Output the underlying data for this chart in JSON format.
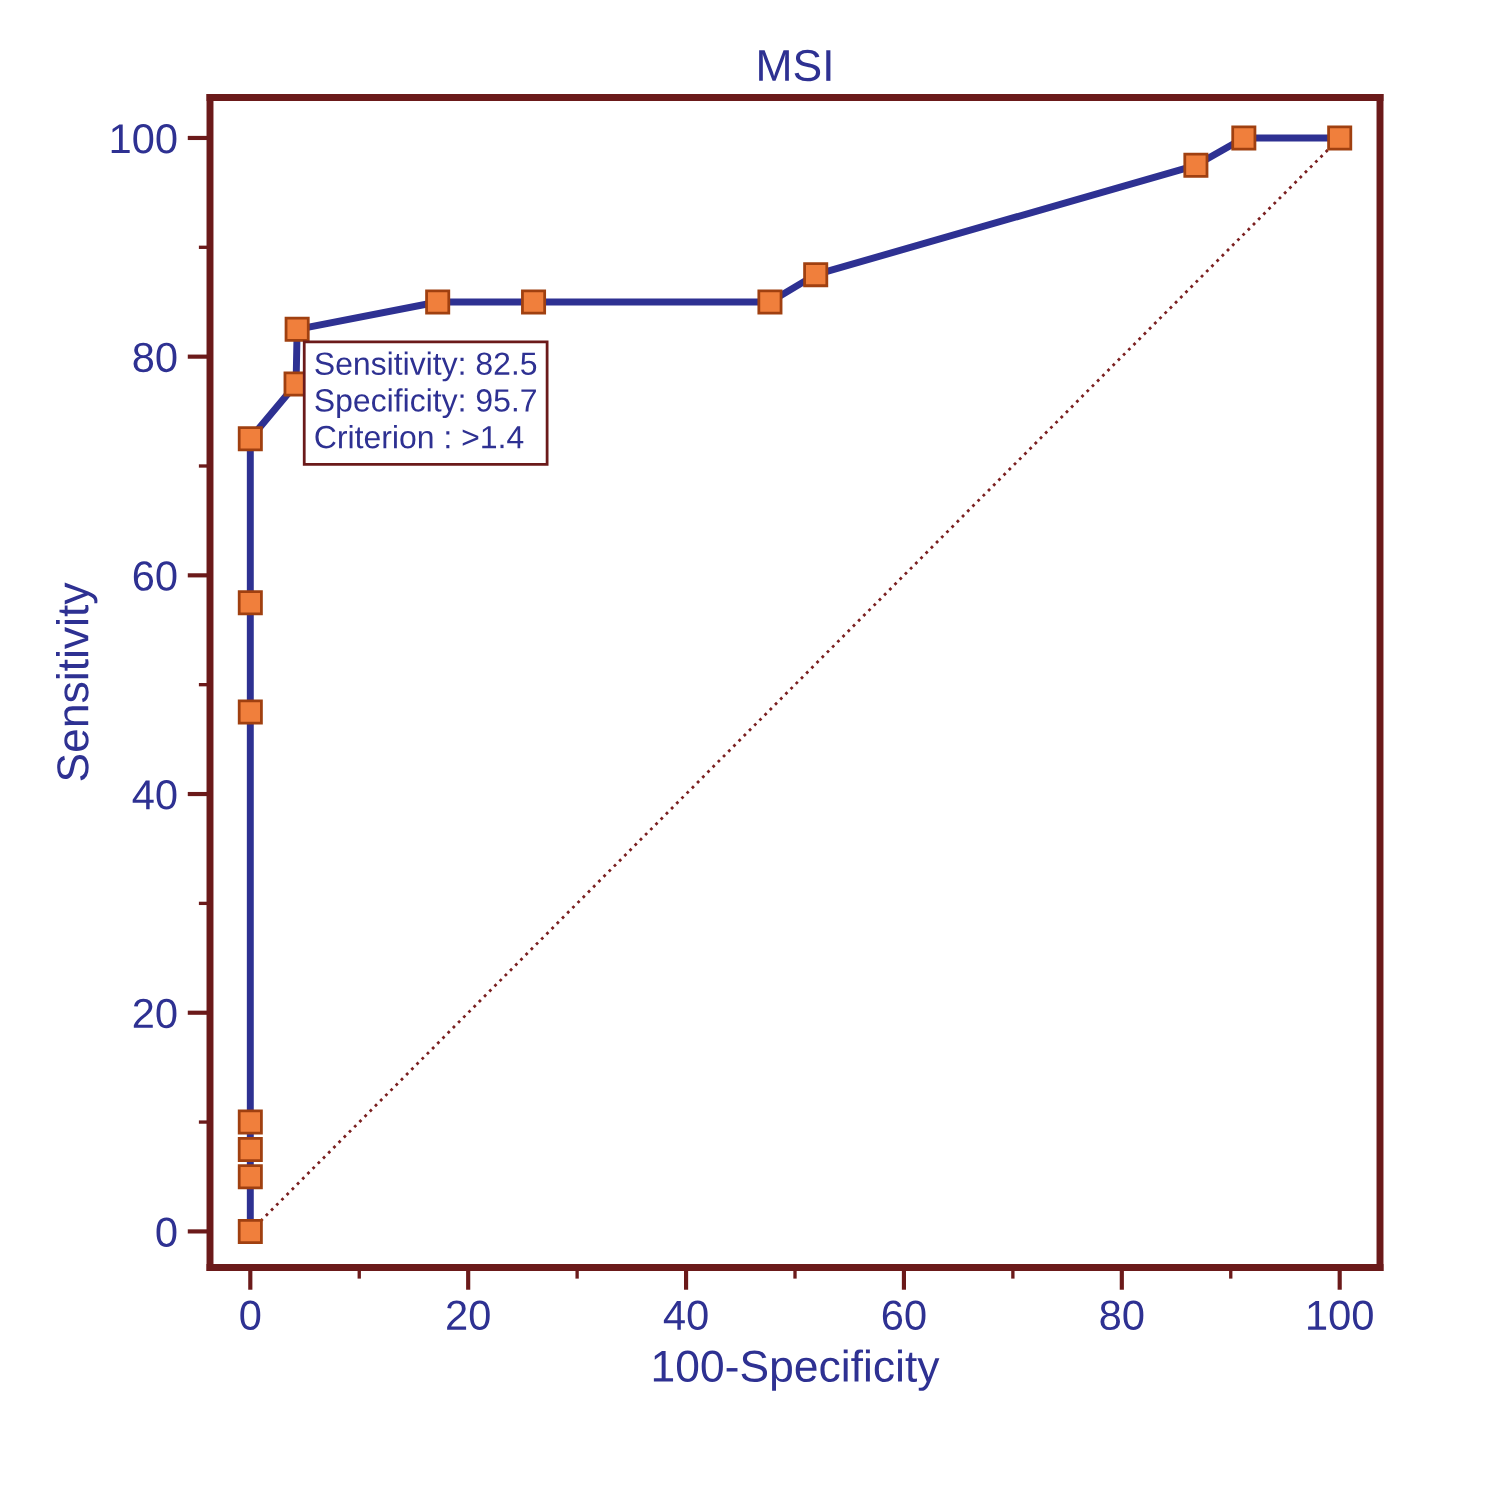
{
  "chart_data": {
    "type": "line",
    "title": "MSI",
    "xlabel": "100-Specificity",
    "ylabel": "Sensitivity",
    "series": [
      {
        "color": "#2e3192",
        "marker": "square",
        "line_style": "solid",
        "x": [
          0,
          0,
          0,
          0,
          0,
          0,
          0,
          4.2,
          4.3,
          17.2,
          26,
          47.7,
          51.9,
          86.8,
          91.2,
          100
        ],
        "values": [
          0,
          5,
          7.5,
          10,
          47.5,
          57.5,
          72.5,
          77.5,
          82.5,
          85,
          85,
          85,
          87.5,
          97.5,
          100,
          100
        ]
      },
      {
        "color": "#7a1f1f",
        "marker": "none",
        "line_style": "dotted",
        "x": [
          0,
          100
        ],
        "values": [
          0,
          100
        ]
      }
    ],
    "annotations": [
      {
        "text": "Sensitivity: 82.5\nSpecificity: 95.7\nCriterion : >1.4",
        "x": 4.3,
        "y": 82.5
      }
    ],
    "xlim": [
      -3.7,
      103.7
    ],
    "ylim": [
      -3.3,
      103.7
    ],
    "xticks": [
      0,
      20,
      40,
      60,
      80,
      100
    ],
    "yticks": [
      0,
      20,
      40,
      60,
      80,
      100
    ],
    "grid": false,
    "legend": false
  }
}
